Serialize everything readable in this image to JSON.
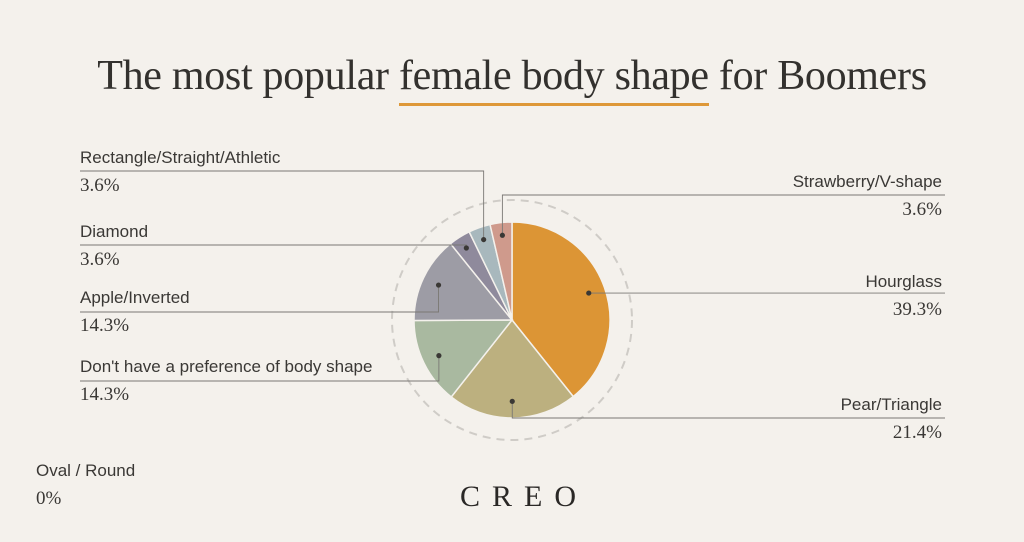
{
  "title": {
    "before": "The most popular ",
    "highlight": "female body shape",
    "after": " for Boomers"
  },
  "brand": "CREO",
  "chart_data": {
    "type": "pie",
    "slices": [
      {
        "label": "Hourglass",
        "value": 39.3,
        "value_label": "39.3%",
        "color": "#dc9535"
      },
      {
        "label": "Pear/Triangle",
        "value": 21.4,
        "value_label": "21.4%",
        "color": "#bcb07f"
      },
      {
        "label": "Don't have a preference of body shape",
        "value": 14.3,
        "value_label": "14.3%",
        "color": "#a9b9a0"
      },
      {
        "label": "Apple/Inverted",
        "value": 14.3,
        "value_label": "14.3%",
        "color": "#9d9ca5"
      },
      {
        "label": "Diamond",
        "value": 3.6,
        "value_label": "3.6%",
        "color": "#8f8a9c"
      },
      {
        "label": "Rectangle/Straight/Athletic",
        "value": 3.6,
        "value_label": "3.6%",
        "color": "#a8b8bd"
      },
      {
        "label": "Strawberry/V-shape",
        "value": 3.6,
        "value_label": "3.6%",
        "color": "#cf9a8c"
      },
      {
        "label": "Oval / Round",
        "value": 0,
        "value_label": "0%",
        "color": "#c9c4bc"
      }
    ]
  }
}
